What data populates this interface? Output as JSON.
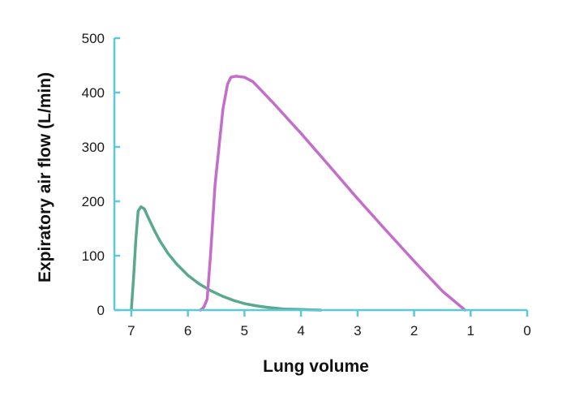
{
  "chart_data": {
    "type": "line",
    "title": "",
    "xlabel": "Lung volume",
    "ylabel": "Expiratory air flow (L/min)",
    "xlim": [
      7.3,
      0
    ],
    "ylim": [
      0,
      500
    ],
    "x_reversed": true,
    "xticks": [
      7,
      6,
      5,
      4,
      3,
      2,
      1,
      0
    ],
    "yticks": [
      0,
      100,
      200,
      300,
      400,
      500
    ],
    "grid": false,
    "legend": "none",
    "axis_color": "#5bc8dc",
    "series": [
      {
        "color": "#5aa98f",
        "points": [
          [
            7.0,
            0
          ],
          [
            6.96,
            60
          ],
          [
            6.92,
            130
          ],
          [
            6.88,
            182
          ],
          [
            6.83,
            190
          ],
          [
            6.77,
            186
          ],
          [
            6.7,
            170
          ],
          [
            6.6,
            148
          ],
          [
            6.5,
            128
          ],
          [
            6.35,
            104
          ],
          [
            6.2,
            85
          ],
          [
            6.0,
            64
          ],
          [
            5.8,
            48
          ],
          [
            5.6,
            36
          ],
          [
            5.4,
            26
          ],
          [
            5.2,
            18
          ],
          [
            5.0,
            12
          ],
          [
            4.8,
            8
          ],
          [
            4.6,
            5
          ],
          [
            4.3,
            2
          ],
          [
            4.0,
            1
          ],
          [
            3.65,
            0
          ]
        ]
      },
      {
        "color": "#c46dcb",
        "points": [
          [
            5.78,
            0
          ],
          [
            5.72,
            5
          ],
          [
            5.66,
            20
          ],
          [
            5.6,
            100
          ],
          [
            5.52,
            230
          ],
          [
            5.45,
            300
          ],
          [
            5.38,
            370
          ],
          [
            5.3,
            415
          ],
          [
            5.24,
            428
          ],
          [
            5.15,
            430
          ],
          [
            5.0,
            428
          ],
          [
            4.85,
            420
          ],
          [
            4.5,
            382
          ],
          [
            4.0,
            325
          ],
          [
            3.5,
            265
          ],
          [
            3.0,
            205
          ],
          [
            2.5,
            147
          ],
          [
            2.0,
            90
          ],
          [
            1.5,
            35
          ],
          [
            1.1,
            0
          ]
        ]
      }
    ]
  }
}
